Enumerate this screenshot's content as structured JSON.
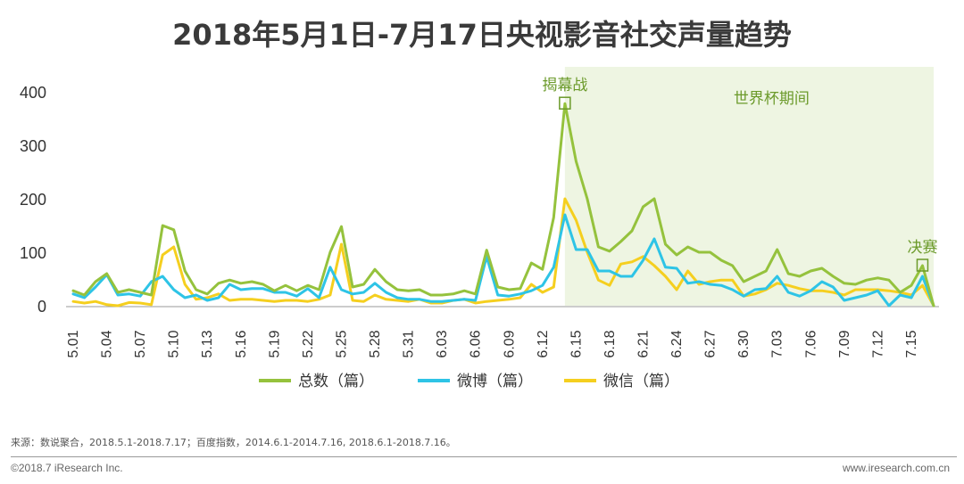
{
  "title": "2018年5月1日-7月17日央视影音社交声量趋势",
  "footer": {
    "source": "来源：数说聚合，2018.5.1-2018.7.17；百度指数，2014.6.1-2014.7.16, 2018.6.1-2018.7.16。",
    "copyright": "©2018.7 iResearch Inc.",
    "website": "www.iresearch.com.cn"
  },
  "colors": {
    "total": "#95c23d",
    "weibo": "#2ec4e6",
    "wechat": "#f5cf1f",
    "worldcup_shade": "#eef5e2",
    "annotation": "#6b9a2a"
  },
  "chart_data": {
    "type": "line",
    "title": "2018年5月1日-7月17日央视影音社交声量趋势",
    "xlabel": "",
    "ylabel": "",
    "ylim": [
      0,
      400
    ],
    "yticks": [
      "0",
      "100",
      "200",
      "300",
      "400"
    ],
    "x": [
      "5.01",
      "5.02",
      "5.03",
      "5.04",
      "5.05",
      "5.06",
      "5.07",
      "5.08",
      "5.09",
      "5.10",
      "5.11",
      "5.12",
      "5.13",
      "5.14",
      "5.15",
      "5.16",
      "5.17",
      "5.18",
      "5.19",
      "5.20",
      "5.21",
      "5.22",
      "5.23",
      "5.24",
      "5.25",
      "5.26",
      "5.27",
      "5.28",
      "5.29",
      "5.30",
      "5.31",
      "6.01",
      "6.02",
      "6.03",
      "6.04",
      "6.05",
      "6.06",
      "6.07",
      "6.08",
      "6.09",
      "6.10",
      "6.11",
      "6.12",
      "6.13",
      "6.14",
      "6.15",
      "6.16",
      "6.17",
      "6.18",
      "6.19",
      "6.20",
      "6.21",
      "6.22",
      "6.23",
      "6.24",
      "6.25",
      "6.26",
      "6.27",
      "6.28",
      "6.29",
      "6.30",
      "7.01",
      "7.02",
      "7.03",
      "7.04",
      "7.05",
      "7.06",
      "7.07",
      "7.08",
      "7.09",
      "7.10",
      "7.11",
      "7.12",
      "7.13",
      "7.14",
      "7.15",
      "7.16",
      "7.17"
    ],
    "xtick_labels": [
      "5.01",
      "5.04",
      "5.07",
      "5.10",
      "5.13",
      "5.16",
      "5.19",
      "5.22",
      "5.25",
      "5.28",
      "5.31",
      "6.03",
      "6.06",
      "6.09",
      "6.12",
      "6.15",
      "6.18",
      "6.21",
      "6.24",
      "6.27",
      "6.30",
      "7.03",
      "7.06",
      "7.09",
      "7.12",
      "7.15"
    ],
    "series": [
      {
        "name": "总数（篇）",
        "color": "#95c23d",
        "values": [
          28,
          20,
          45,
          60,
          25,
          30,
          25,
          20,
          150,
          142,
          65,
          30,
          22,
          42,
          48,
          42,
          45,
          40,
          28,
          38,
          28,
          38,
          30,
          100,
          148,
          35,
          40,
          68,
          45,
          30,
          28,
          30,
          20,
          20,
          22,
          28,
          22,
          104,
          35,
          30,
          32,
          80,
          68,
          165,
          378,
          270,
          200,
          110,
          102,
          120,
          140,
          185,
          200,
          115,
          95,
          110,
          100,
          100,
          85,
          75,
          45,
          55,
          65,
          105,
          60,
          55,
          65,
          70,
          55,
          42,
          40,
          48,
          52,
          48,
          25,
          38,
          75,
          0
        ]
      },
      {
        "name": "微博（篇）",
        "color": "#2ec4e6",
        "values": [
          22,
          15,
          35,
          58,
          20,
          22,
          18,
          45,
          55,
          30,
          15,
          20,
          10,
          15,
          40,
          30,
          32,
          32,
          25,
          25,
          18,
          32,
          15,
          72,
          30,
          22,
          25,
          42,
          25,
          15,
          12,
          12,
          8,
          8,
          10,
          12,
          10,
          92,
          20,
          18,
          22,
          28,
          38,
          72,
          170,
          105,
          105,
          65,
          65,
          55,
          55,
          85,
          125,
          72,
          70,
          42,
          45,
          40,
          38,
          30,
          18,
          30,
          32,
          55,
          25,
          18,
          28,
          45,
          35,
          10,
          15,
          20,
          28,
          0,
          20,
          15,
          55,
          0
        ]
      },
      {
        "name": "微信（篇）",
        "color": "#f5cf1f",
        "values": [
          8,
          5,
          8,
          2,
          0,
          6,
          5,
          2,
          95,
          110,
          40,
          12,
          15,
          22,
          10,
          12,
          12,
          10,
          8,
          10,
          10,
          8,
          12,
          20,
          115,
          10,
          8,
          20,
          12,
          10,
          8,
          12,
          5,
          5,
          10,
          12,
          5,
          8,
          10,
          12,
          15,
          40,
          25,
          35,
          200,
          160,
          100,
          48,
          38,
          78,
          82,
          92,
          75,
          55,
          30,
          65,
          40,
          45,
          48,
          48,
          18,
          22,
          30,
          42,
          38,
          32,
          28,
          28,
          25,
          20,
          30,
          30,
          30,
          28,
          25,
          20,
          38,
          0
        ]
      }
    ],
    "shaded_region": {
      "label": "世界杯期间",
      "start": "6.14",
      "end": "7.17"
    },
    "annotations": [
      {
        "label": "揭幕战",
        "x": "6.14",
        "y": 378
      },
      {
        "label": "决赛",
        "x": "7.16",
        "y": 75
      }
    ],
    "legend_position": "bottom"
  }
}
